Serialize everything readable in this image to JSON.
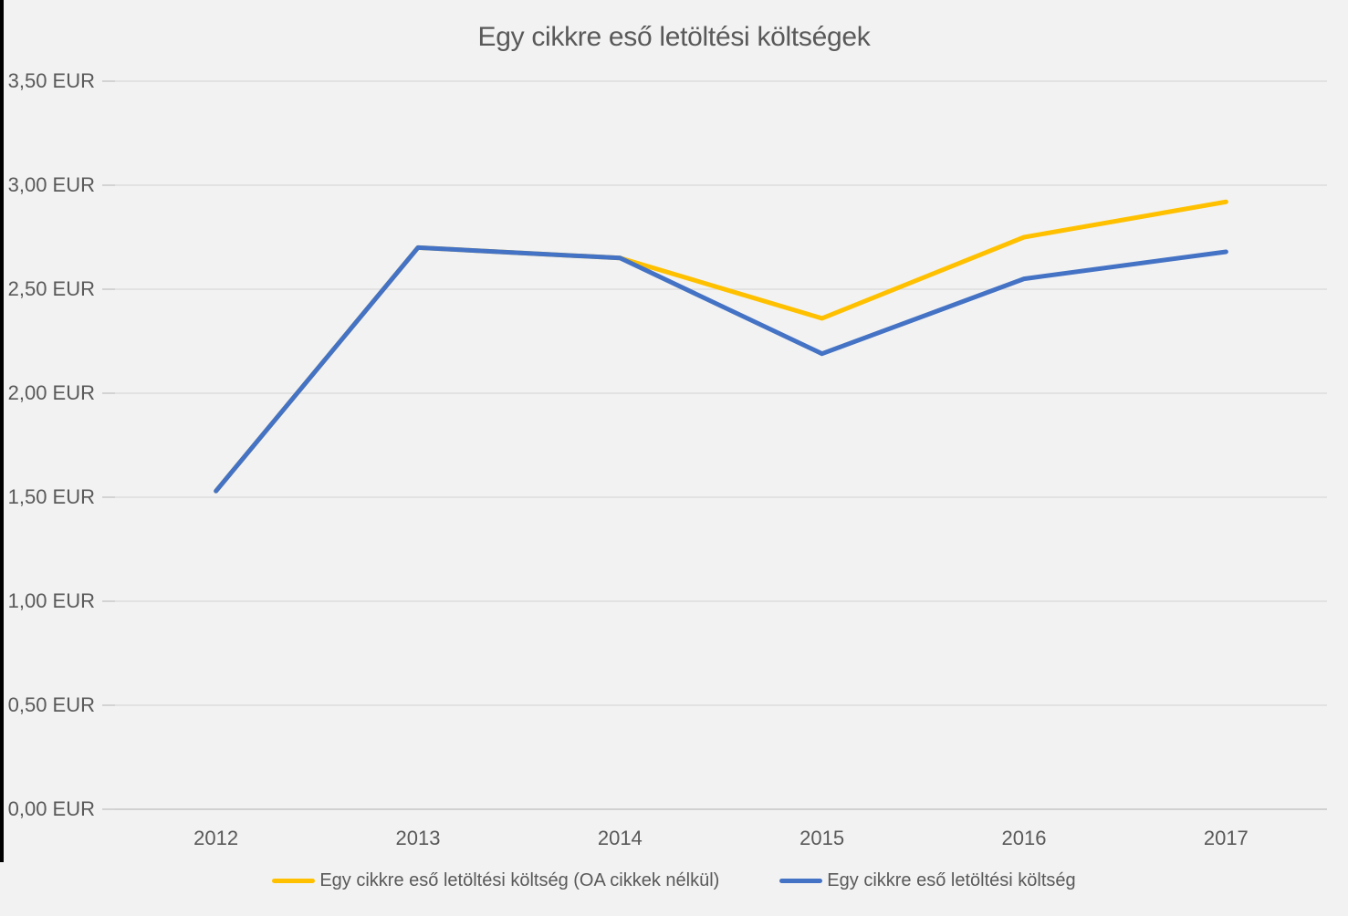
{
  "chart": {
    "title": "Egy cikkre eső letöltési költségek",
    "background_color": "#F2F2F2",
    "text_color": "#595959",
    "gridline_color": "#DCDCDC",
    "axis_line_color": "#C6C6C6"
  },
  "chart_data": {
    "type": "line",
    "title": "Egy cikkre eső letöltési költségek",
    "categories": [
      "2012",
      "2013",
      "2014",
      "2015",
      "2016",
      "2017"
    ],
    "series": [
      {
        "name": "Egy cikkre eső letöltési költség (OA cikkek nélkül)",
        "color": "#FFC000",
        "values": [
          1.53,
          2.7,
          2.65,
          2.36,
          2.75,
          2.92
        ]
      },
      {
        "name": "Egy cikkre eső letöltési költség",
        "color": "#4472C4",
        "values": [
          1.53,
          2.7,
          2.65,
          2.19,
          2.55,
          2.68
        ]
      }
    ],
    "y_axis": {
      "unit": "EUR",
      "min": 0,
      "max": 3.5,
      "step": 0.5,
      "tick_labels": [
        "3,50 EUR",
        "3,00 EUR",
        "2,50 EUR",
        "2,00 EUR",
        "1,50 EUR",
        "1,00 EUR",
        "0,50 EUR",
        "0,00 EUR"
      ]
    },
    "grid": true,
    "legend_position": "bottom"
  }
}
